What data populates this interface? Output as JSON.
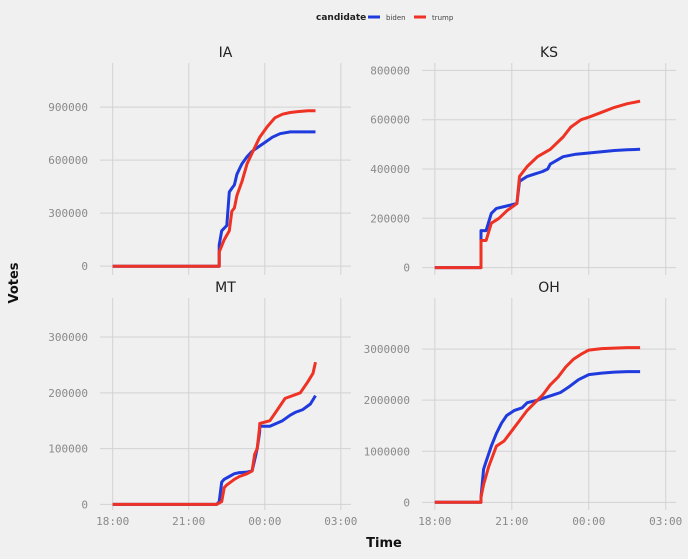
{
  "legend": {
    "title": "candidate",
    "labels": [
      "biden",
      "trump"
    ]
  },
  "xlabel": "Time",
  "ylabel": "Votes",
  "colors": {
    "biden": "#1f3bdd",
    "trump": "#ee3224",
    "background": "#f0f0f0",
    "grid": "#d2d2d2"
  },
  "chart_data": {
    "type": "line",
    "x_ticks": [
      "18:00",
      "21:00",
      "00:00",
      "03:00"
    ],
    "xlim_hours": [
      17.5,
      27.4
    ],
    "panels": [
      {
        "title": "IA",
        "y_ticks": [
          "0",
          "300000",
          "600000",
          "900000"
        ],
        "ylim": [
          -50000,
          1150000
        ],
        "series": [
          {
            "name": "biden",
            "x": [
              18.0,
              22.2,
              22.2,
              22.3,
              22.5,
              22.6,
              22.7,
              22.8,
              22.9,
              23.0,
              23.1,
              23.3,
              23.5,
              23.8,
              24.0,
              24.3,
              24.6,
              25.0,
              25.5,
              26.0
            ],
            "y": [
              0,
              0,
              120000,
              200000,
              230000,
              420000,
              440000,
              460000,
              520000,
              550000,
              580000,
              620000,
              650000,
              680000,
              700000,
              730000,
              750000,
              760000,
              760000,
              760000
            ]
          },
          {
            "name": "trump",
            "x": [
              18.0,
              22.2,
              22.2,
              22.4,
              22.6,
              22.7,
              22.8,
              22.9,
              23.1,
              23.3,
              23.5,
              23.8,
              24.1,
              24.4,
              24.7,
              25.0,
              25.3,
              25.7,
              26.0
            ],
            "y": [
              0,
              0,
              80000,
              150000,
              200000,
              310000,
              330000,
              400000,
              480000,
              580000,
              640000,
              730000,
              790000,
              840000,
              860000,
              870000,
              875000,
              880000,
              880000
            ]
          }
        ]
      },
      {
        "title": "KS",
        "y_ticks": [
          "0",
          "200000",
          "400000",
          "600000",
          "800000"
        ],
        "ylim": [
          -30000,
          830000
        ],
        "series": [
          {
            "name": "biden",
            "x": [
              18.0,
              19.8,
              19.8,
              20.0,
              20.2,
              20.4,
              20.8,
              21.2,
              21.3,
              21.6,
              21.9,
              22.2,
              22.4,
              22.5,
              23.0,
              23.5,
              24.0,
              24.5,
              25.0,
              25.5,
              26.0
            ],
            "y": [
              0,
              0,
              150000,
              150000,
              220000,
              240000,
              250000,
              260000,
              350000,
              370000,
              380000,
              390000,
              400000,
              420000,
              450000,
              460000,
              465000,
              470000,
              475000,
              478000,
              480000
            ]
          },
          {
            "name": "trump",
            "x": [
              18.0,
              19.8,
              19.8,
              20.0,
              20.2,
              20.5,
              20.8,
              21.2,
              21.3,
              21.6,
              22.0,
              22.5,
              23.0,
              23.3,
              23.7,
              24.0,
              24.5,
              25.0,
              25.5,
              26.0
            ],
            "y": [
              0,
              0,
              110000,
              110000,
              180000,
              200000,
              230000,
              260000,
              370000,
              410000,
              450000,
              480000,
              530000,
              570000,
              600000,
              610000,
              630000,
              650000,
              665000,
              675000
            ]
          }
        ]
      },
      {
        "title": "MT",
        "y_ticks": [
          "0",
          "100000",
          "200000",
          "300000"
        ],
        "ylim": [
          -10000,
          370000
        ],
        "series": [
          {
            "name": "biden",
            "x": [
              18.0,
              22.1,
              22.2,
              22.3,
              22.4,
              22.6,
              22.8,
              23.0,
              23.3,
              23.5,
              23.6,
              23.7,
              23.8,
              23.8,
              24.2,
              24.7,
              25.0,
              25.2,
              25.5,
              25.8,
              26.0
            ],
            "y": [
              0,
              0,
              5000,
              40000,
              45000,
              50000,
              55000,
              57000,
              58000,
              60000,
              80000,
              100000,
              130000,
              140000,
              140000,
              150000,
              160000,
              165000,
              170000,
              180000,
              195000
            ]
          },
          {
            "name": "trump",
            "x": [
              18.0,
              22.1,
              22.3,
              22.4,
              22.5,
              22.8,
              23.0,
              23.3,
              23.5,
              23.6,
              23.7,
              23.8,
              23.8,
              24.2,
              24.5,
              24.8,
              25.1,
              25.4,
              25.7,
              25.9,
              26.0
            ],
            "y": [
              0,
              0,
              5000,
              30000,
              35000,
              45000,
              50000,
              55000,
              60000,
              90000,
              100000,
              140000,
              145000,
              150000,
              170000,
              190000,
              195000,
              200000,
              220000,
              235000,
              255000
            ]
          }
        ]
      },
      {
        "title": "OH",
        "y_ticks": [
          "0",
          "1000000",
          "2000000",
          "3000000"
        ],
        "ylim": [
          -150000,
          4000000
        ],
        "series": [
          {
            "name": "biden",
            "x": [
              18.0,
              19.8,
              19.8,
              19.9,
              20.0,
              20.2,
              20.4,
              20.6,
              20.8,
              21.1,
              21.4,
              21.6,
              22.0,
              22.3,
              22.6,
              22.9,
              23.2,
              23.6,
              24.0,
              24.5,
              25.0,
              25.5,
              26.0
            ],
            "y": [
              0,
              0,
              100000,
              650000,
              800000,
              1100000,
              1350000,
              1550000,
              1700000,
              1800000,
              1850000,
              1950000,
              2000000,
              2050000,
              2100000,
              2150000,
              2250000,
              2400000,
              2500000,
              2530000,
              2550000,
              2560000,
              2560000
            ]
          },
          {
            "name": "trump",
            "x": [
              18.0,
              19.8,
              19.8,
              19.9,
              20.1,
              20.4,
              20.7,
              21.0,
              21.3,
              21.6,
              21.9,
              22.2,
              22.5,
              22.8,
              23.1,
              23.4,
              23.7,
              24.0,
              24.5,
              25.0,
              25.5,
              26.0
            ],
            "y": [
              0,
              0,
              100000,
              350000,
              700000,
              1100000,
              1200000,
              1400000,
              1600000,
              1800000,
              1950000,
              2100000,
              2300000,
              2450000,
              2650000,
              2800000,
              2900000,
              2980000,
              3010000,
              3020000,
              3030000,
              3030000
            ]
          }
        ]
      }
    ]
  }
}
